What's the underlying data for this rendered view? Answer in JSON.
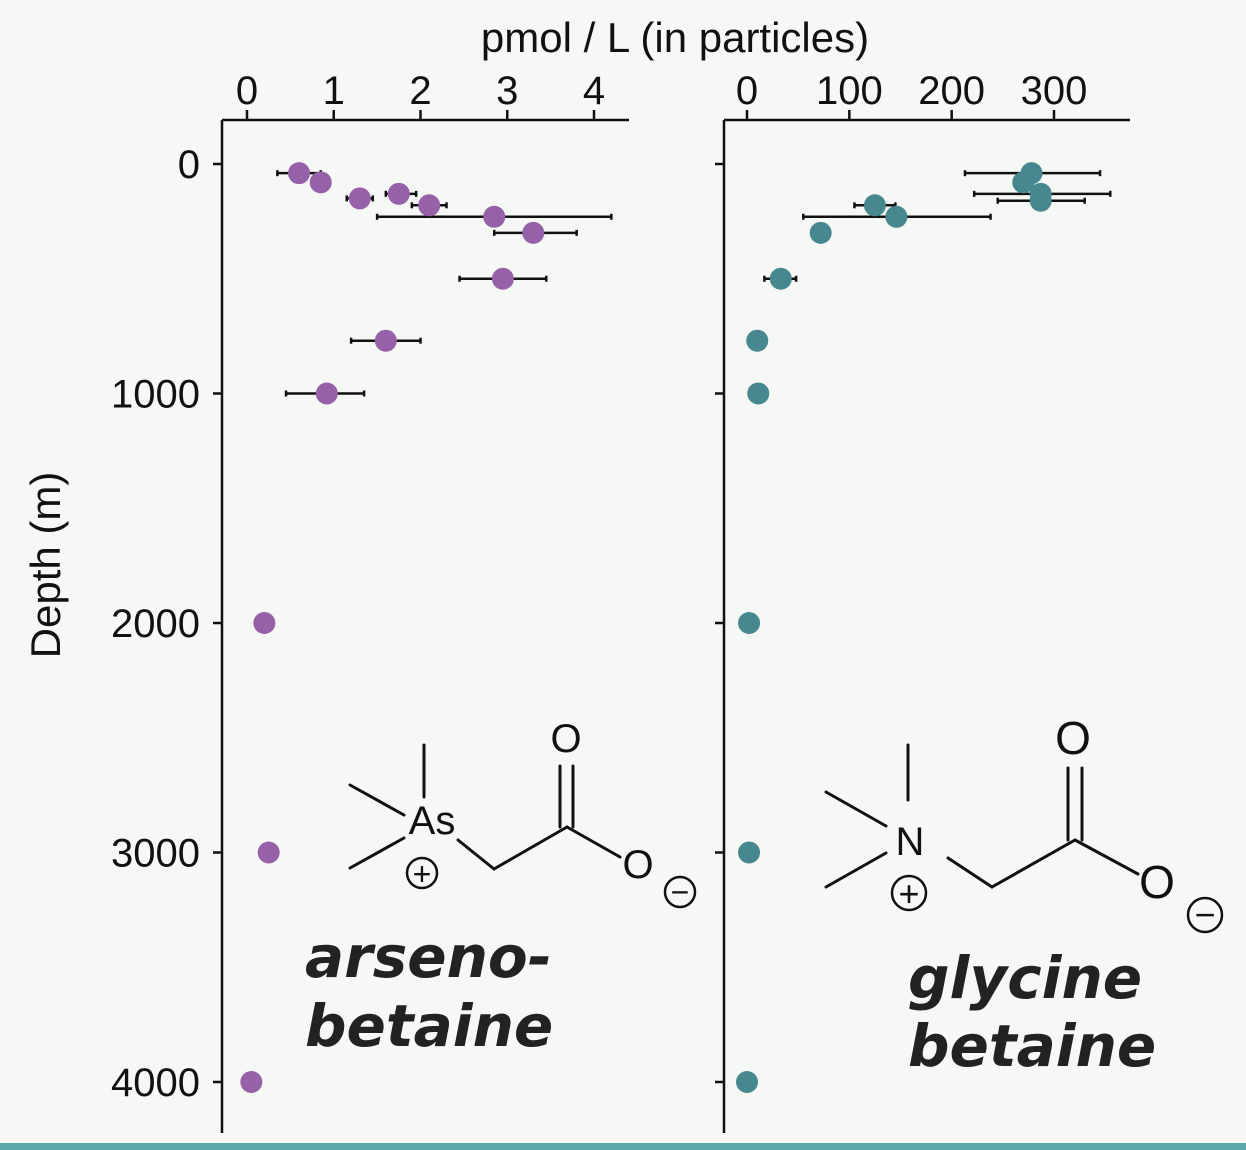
{
  "chart_data": [
    {
      "type": "scatter",
      "panel": "left",
      "title": "",
      "xlabel": "pmol / L (in particles)",
      "ylabel": "Depth (m)",
      "x_ticks": [
        "0",
        "1",
        "2",
        "3",
        "4"
      ],
      "y_ticks": [
        "0",
        "1000",
        "2000",
        "3000",
        "4000"
      ],
      "xlim": [
        -0.2,
        4.4
      ],
      "ylim": [
        4220,
        -200
      ],
      "y_inverted": true,
      "x_axis_position": "top",
      "grid": false,
      "marker_color": "#9661a8",
      "compound": {
        "name_lines": [
          "arseno-",
          "betaine"
        ],
        "center_atom": "As",
        "oxygen_top": "O",
        "oxygen_right": "O",
        "positive_charge": "+",
        "negative_charge": "−"
      },
      "series": [
        {
          "name": "",
          "points": [
            {
              "x": 0.6,
              "y": 40,
              "xerr": [
                0.35,
                0.85
              ]
            },
            {
              "x": 0.85,
              "y": 80,
              "xerr": null
            },
            {
              "x": 1.3,
              "y": 150,
              "xerr": [
                1.15,
                1.45
              ]
            },
            {
              "x": 1.75,
              "y": 130,
              "xerr": [
                1.6,
                1.95
              ]
            },
            {
              "x": 2.1,
              "y": 180,
              "xerr": [
                1.9,
                2.3
              ]
            },
            {
              "x": 2.85,
              "y": 230,
              "xerr": [
                1.5,
                4.2
              ]
            },
            {
              "x": 3.3,
              "y": 300,
              "xerr": [
                2.85,
                3.8
              ]
            },
            {
              "x": 2.95,
              "y": 500,
              "xerr": [
                2.45,
                3.45
              ]
            },
            {
              "x": 1.6,
              "y": 770,
              "xerr": [
                1.2,
                2.0
              ]
            },
            {
              "x": 0.92,
              "y": 1000,
              "xerr": [
                0.45,
                1.35
              ]
            },
            {
              "x": 0.2,
              "y": 2000,
              "xerr": null
            },
            {
              "x": 0.25,
              "y": 3000,
              "xerr": null
            },
            {
              "x": 0.05,
              "y": 4000,
              "xerr": null
            }
          ]
        }
      ]
    },
    {
      "type": "scatter",
      "panel": "right",
      "title": "",
      "xlabel": "pmol / L (in particles)",
      "ylabel": "Depth (m)",
      "x_ticks": [
        "0",
        "100",
        "200",
        "300"
      ],
      "y_ticks": [
        "0",
        "1000",
        "2000",
        "3000",
        "4000"
      ],
      "xlim": [
        -20,
        375
      ],
      "ylim": [
        4220,
        -200
      ],
      "y_inverted": true,
      "x_axis_position": "top",
      "grid": false,
      "marker_color": "#47878f",
      "compound": {
        "name_lines": [
          "glycine",
          "betaine"
        ],
        "center_atom": "N",
        "oxygen_top": "O",
        "oxygen_right": "O",
        "positive_charge": "+",
        "negative_charge": "−"
      },
      "series": [
        {
          "name": "",
          "points": [
            {
              "x": 278,
              "y": 40,
              "xerr": [
                213,
                345
              ]
            },
            {
              "x": 270,
              "y": 80,
              "xerr": null
            },
            {
              "x": 287,
              "y": 130,
              "xerr": [
                222,
                355
              ]
            },
            {
              "x": 287,
              "y": 160,
              "xerr": [
                245,
                330
              ]
            },
            {
              "x": 125,
              "y": 180,
              "xerr": [
                105,
                145
              ]
            },
            {
              "x": 146,
              "y": 230,
              "xerr": [
                55,
                238
              ]
            },
            {
              "x": 72,
              "y": 300,
              "xerr": null
            },
            {
              "x": 33,
              "y": 500,
              "xerr": [
                17,
                48
              ]
            },
            {
              "x": 10,
              "y": 770,
              "xerr": null
            },
            {
              "x": 11,
              "y": 1000,
              "xerr": null
            },
            {
              "x": 2,
              "y": 2000,
              "xerr": null
            },
            {
              "x": 2,
              "y": 3000,
              "xerr": null
            },
            {
              "x": 0,
              "y": 4000,
              "xerr": null
            }
          ]
        }
      ]
    }
  ],
  "colors": {
    "background": "#f6f8f5",
    "bottom_rule": "#5aa8ab"
  }
}
